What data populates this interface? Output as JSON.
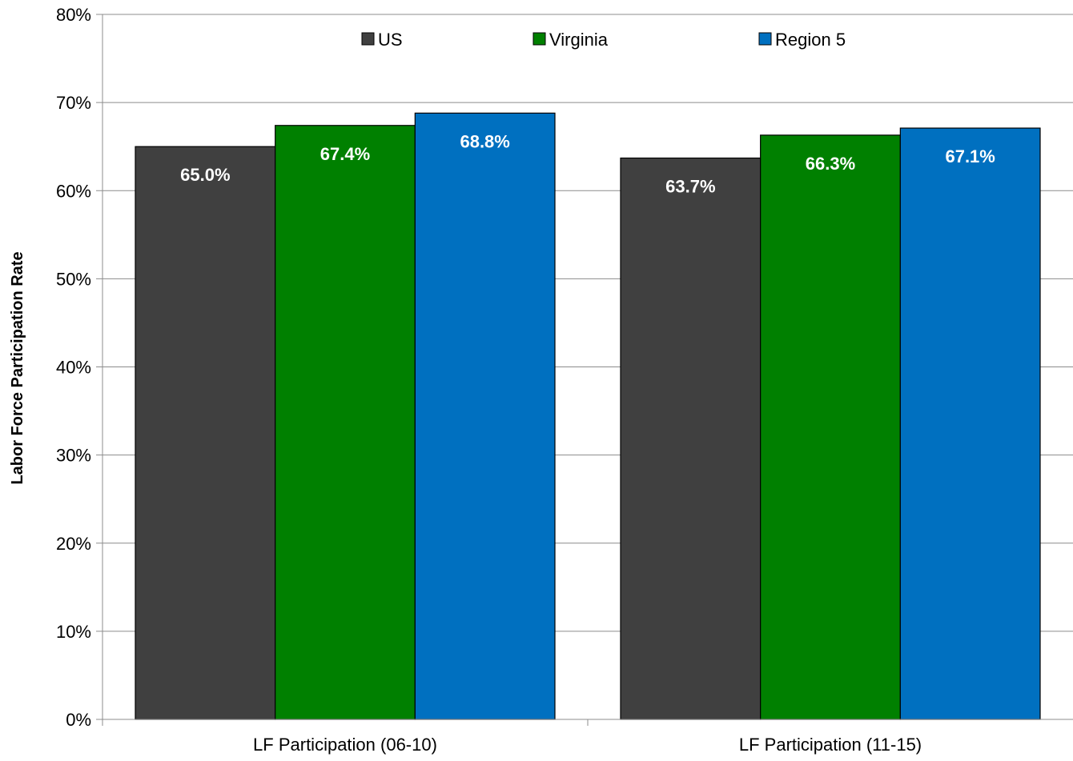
{
  "chart_data": {
    "type": "bar",
    "title": "",
    "xlabel": "",
    "ylabel": "Labor Force Participation Rate",
    "categories": [
      "LF Participation (06-10)",
      "LF Participation (11-15)"
    ],
    "series": [
      {
        "name": "US",
        "color": "#404040",
        "values": [
          65.0,
          63.7
        ],
        "labels": [
          "65.0%",
          "63.7%"
        ]
      },
      {
        "name": "Virginia",
        "color": "#008000",
        "values": [
          67.4,
          66.3
        ],
        "labels": [
          "67.4%",
          "66.3%"
        ]
      },
      {
        "name": "Region 5",
        "color": "#0070C0",
        "values": [
          68.8,
          67.1
        ],
        "labels": [
          "68.8%",
          "67.1%"
        ]
      }
    ],
    "ylim": [
      0,
      80
    ],
    "yticks": [
      0,
      10,
      20,
      30,
      40,
      50,
      60,
      70,
      80
    ],
    "ytick_labels": [
      "0%",
      "10%",
      "20%",
      "30%",
      "40%",
      "50%",
      "60%",
      "70%",
      "80%"
    ],
    "grid": true,
    "legend": "top-center"
  }
}
